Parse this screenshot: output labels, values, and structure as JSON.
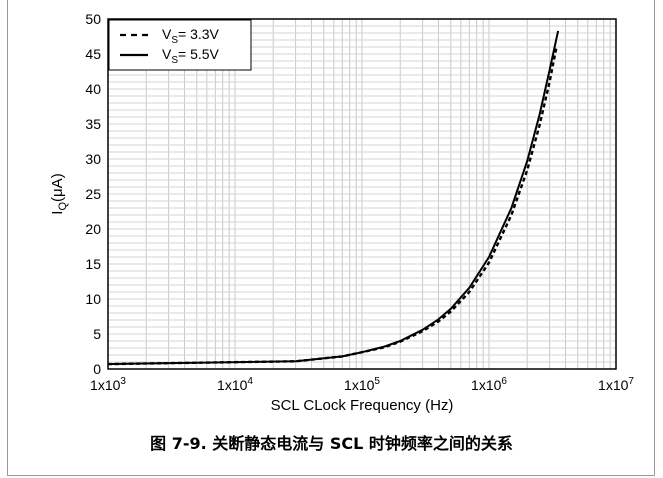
{
  "caption": "图 7-9. 关断静态电流与 SCL 时钟频率之间的关系",
  "chart_data": {
    "type": "line",
    "xscale": "log",
    "xlim": [
      1000,
      10000000
    ],
    "ylim": [
      0,
      50
    ],
    "xlabel": "SCL CLock Frequency (Hz)",
    "ylabel": {
      "base": "I",
      "sub": "Q",
      "rest": "(μA)"
    },
    "xticks": [
      {
        "value": 1000,
        "base": "1x10",
        "exp": "3"
      },
      {
        "value": 10000,
        "base": "1x10",
        "exp": "4"
      },
      {
        "value": 100000,
        "base": "1x10",
        "exp": "5"
      },
      {
        "value": 1000000,
        "base": "1x10",
        "exp": "6"
      },
      {
        "value": 10000000,
        "base": "1x10",
        "exp": "7"
      }
    ],
    "yticks": [
      0,
      5,
      10,
      15,
      20,
      25,
      30,
      35,
      40,
      45,
      50
    ],
    "grid": true,
    "legend_position": "top-left",
    "series": [
      {
        "name": "V_S= 3.3V",
        "label_base": "V",
        "label_sub": "S",
        "label_rest": "= 3.3V",
        "style": "dashed",
        "color": "#000000",
        "x": [
          1000,
          5000,
          30000,
          70000,
          100000,
          150000,
          200000,
          300000,
          400000,
          500000,
          700000,
          1000000,
          1500000,
          2000000,
          2500000,
          3000000,
          3400000
        ],
        "y": [
          0.7,
          0.9,
          1.1,
          1.8,
          2.4,
          3.1,
          3.9,
          5.4,
          6.8,
          8.2,
          11.0,
          15.2,
          22.0,
          28.4,
          34.8,
          41.0,
          46.0
        ]
      },
      {
        "name": "V_S= 5.5V",
        "label_base": "V",
        "label_sub": "S",
        "label_rest": "= 5.5V",
        "style": "solid",
        "color": "#000000",
        "x": [
          1000,
          5000,
          30000,
          70000,
          100000,
          150000,
          200000,
          300000,
          400000,
          500000,
          700000,
          1000000,
          1500000,
          2000000,
          2500000,
          3000000,
          3500000
        ],
        "y": [
          0.7,
          0.9,
          1.1,
          1.8,
          2.4,
          3.2,
          4.0,
          5.6,
          7.1,
          8.6,
          11.6,
          16.0,
          23.0,
          29.7,
          36.3,
          42.7,
          48.3
        ]
      }
    ]
  }
}
